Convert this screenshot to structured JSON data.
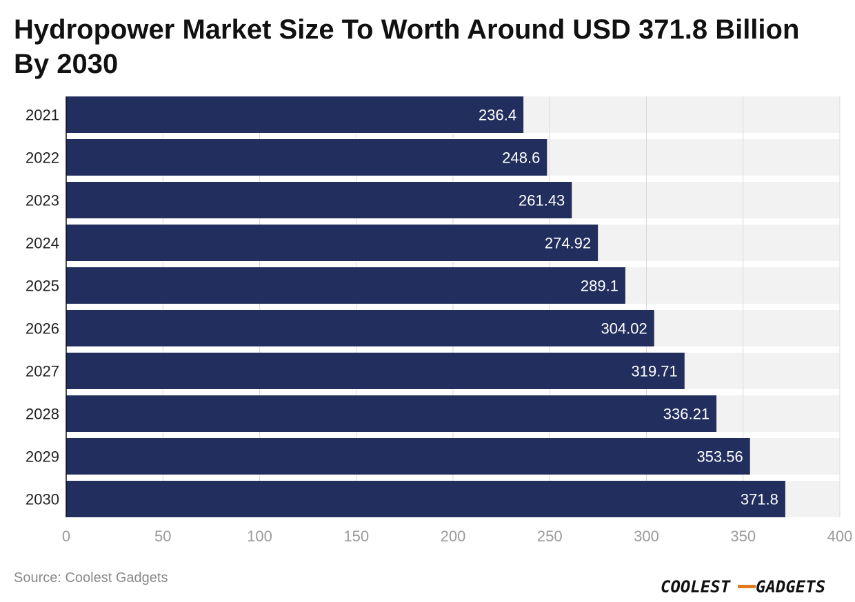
{
  "title": "Hydropower Market Size To Worth Around USD 371.8 Billion By 2030",
  "source": "Source: Coolest Gadgets",
  "logo": {
    "part1": "COOLEST",
    "part2": "GADGETS",
    "accent": "#e07b1f"
  },
  "colors": {
    "bar": "#222f5e",
    "band": "#f2f2f2",
    "grid": "#d9d9d9",
    "tick": "#9a9a9a",
    "label": "#ffffff"
  },
  "chart_data": {
    "type": "bar",
    "orientation": "horizontal",
    "categories": [
      "2021",
      "2022",
      "2023",
      "2024",
      "2025",
      "2026",
      "2027",
      "2028",
      "2029",
      "2030"
    ],
    "values": [
      236.4,
      248.6,
      261.43,
      274.92,
      289.1,
      304.02,
      319.71,
      336.21,
      353.56,
      371.8
    ],
    "value_labels": [
      "236.4",
      "248.6",
      "261.43",
      "274.92",
      "289.1",
      "304.02",
      "319.71",
      "336.21",
      "353.56",
      "371.8"
    ],
    "xlim": [
      0,
      400
    ],
    "xticks": [
      0,
      50,
      100,
      150,
      200,
      250,
      300,
      350,
      400
    ],
    "grid": true
  }
}
